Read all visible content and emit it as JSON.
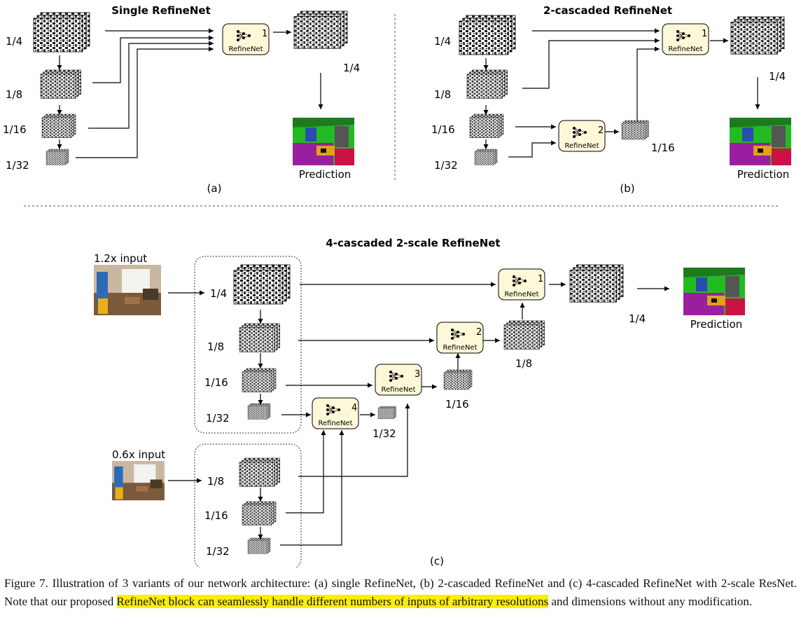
{
  "panel_a": {
    "title": "Single RefineNet",
    "scales": [
      "1/4",
      "1/8",
      "1/16",
      "1/32"
    ],
    "block": {
      "label": "RefineNet",
      "index": "1"
    },
    "output_scale": "1/4",
    "prediction": "Prediction",
    "tag": "(a)"
  },
  "panel_b": {
    "title": "2-cascaded RefineNet",
    "scales": [
      "1/4",
      "1/8",
      "1/16",
      "1/32"
    ],
    "blocks": [
      {
        "label": "RefineNet",
        "index": "1"
      },
      {
        "label": "RefineNet",
        "index": "2"
      }
    ],
    "mid_scale": "1/16",
    "output_scale": "1/4",
    "prediction": "Prediction",
    "tag": "(b)"
  },
  "panel_c": {
    "title": "4-cascaded 2-scale RefineNet",
    "input_hi": "1.2x input",
    "input_lo": "0.6x input",
    "scales_hi": [
      "1/4",
      "1/8",
      "1/16",
      "1/32"
    ],
    "scales_lo": [
      "1/8",
      "1/16",
      "1/32"
    ],
    "blocks": [
      {
        "label": "RefineNet",
        "index": "1"
      },
      {
        "label": "RefineNet",
        "index": "2"
      },
      {
        "label": "RefineNet",
        "index": "3"
      },
      {
        "label": "RefineNet",
        "index": "4"
      }
    ],
    "out_scales": [
      "1/4",
      "1/8",
      "1/16",
      "1/32"
    ],
    "prediction": "Prediction",
    "tag": "(c)"
  },
  "caption": {
    "before": "Figure 7. Illustration of 3 variants of our network architecture: (a) single RefineNet, (b) 2-cascaded RefineNet and (c) 4-cascaded RefineNet with 2-scale ResNet. Note that our proposed ",
    "highlight": "RefineNet block can seamlessly handle different numbers of inputs of arbitrary resolutions",
    "after": " and dimensions without any modification."
  },
  "colors": {
    "block_fill": "#fdf8d8",
    "highlight": "#ffee00"
  }
}
